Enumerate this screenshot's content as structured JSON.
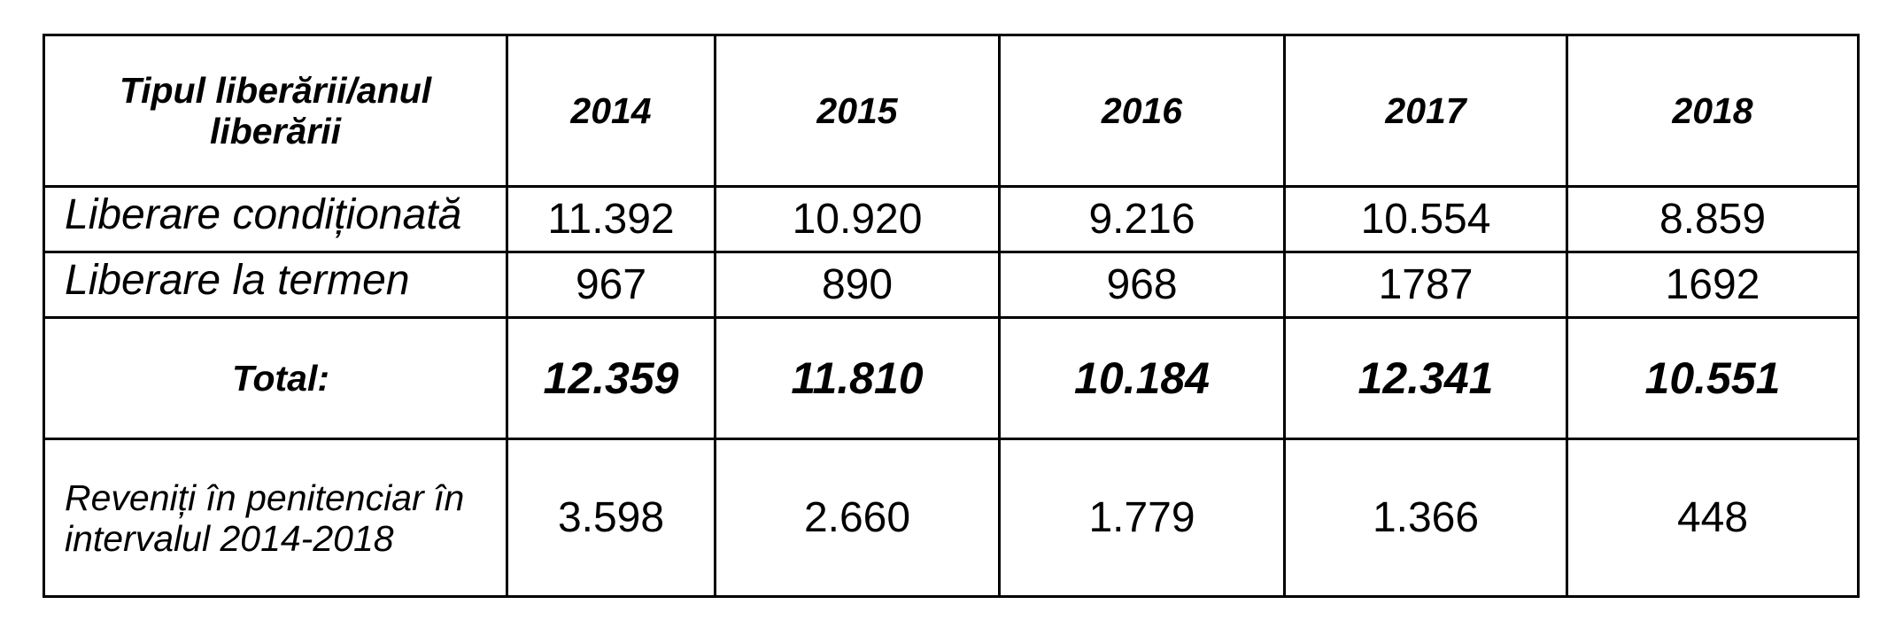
{
  "table": {
    "header": [
      "Tipul liberării/anul liberării",
      "2014",
      "2015",
      "2016",
      "2017",
      "2018"
    ],
    "rows": [
      [
        "Liberare condiționată",
        "11.392",
        "10.920",
        "9.216",
        "10.554",
        "8.859"
      ],
      [
        "Liberare la termen",
        "967",
        "890",
        "968",
        "1787",
        "1692"
      ],
      [
        "Total:",
        "12.359",
        "11.810",
        "10.184",
        "12.341",
        "10.551"
      ],
      [
        "Reveniți în penitenciar în intervalul 2014-2018",
        "3.598",
        "2.660",
        "1.779",
        "1.366",
        "448"
      ]
    ]
  }
}
